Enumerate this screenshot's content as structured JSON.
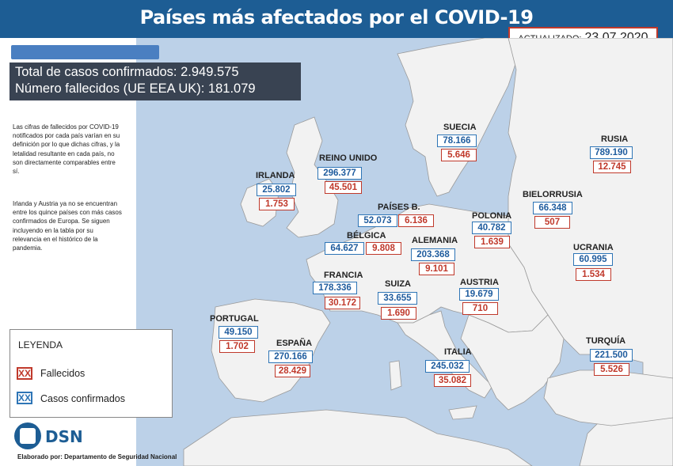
{
  "header": {
    "title": "Países más afectados por el COVID-19",
    "update_label": "ACTUALIZADO:",
    "update_date": "23.07.2020"
  },
  "summary": {
    "total_cases": "Total de casos confirmados: 2.949.575",
    "total_deaths": "Número fallecidos (UE EEA UK): 181.079"
  },
  "notes": {
    "note1": "Las cifras de fallecidos por COVID-19 notificados por cada país varían en su definición por lo que dichas cifras, y la letalidad resultante en cada país, no son directamente comparables entre sí.",
    "note2": "Irlanda y Austria ya no se encuentran entre los quince países con más casos confirmados de Europa. Se siguen incluyendo en la tabla por su relevancia en el histórico de la pandemia."
  },
  "legend": {
    "title": "LEYENDA",
    "deaths_chip": "XX",
    "deaths_label": "Fallecidos",
    "cases_chip": "XX",
    "cases_label": "Casos confirmados"
  },
  "colors": {
    "header": "#1d5d94",
    "cases": "#2e75b6",
    "deaths": "#c0392b",
    "sea": "#bcd1e8",
    "land": "#f2f2f2"
  },
  "footer": {
    "logo_text": "DSN",
    "credit": "Elaborado por: Departamento de Seguridad Nacional"
  },
  "countries": {
    "irlanda": {
      "name": "IRLANDA",
      "cases": "25.802",
      "deaths": "1.753"
    },
    "reino_unido": {
      "name": "REINO UNIDO",
      "cases": "296.377",
      "deaths": "45.501"
    },
    "suecia": {
      "name": "SUECIA",
      "cases": "78.166",
      "deaths": "5.646"
    },
    "rusia": {
      "name": "RUSIA",
      "cases": "789.190",
      "deaths": "12.745"
    },
    "paises_b": {
      "name": "PAÍSES B.",
      "cases": "52.073",
      "deaths": "6.136"
    },
    "bielorrusia": {
      "name": "BIELORRUSIA",
      "cases": "66.348",
      "deaths": "507"
    },
    "polonia": {
      "name": "POLONIA",
      "cases": "40.782",
      "deaths": "1.639"
    },
    "belgica": {
      "name": "BÉLGICA",
      "cases": "64.627",
      "deaths": "9.808"
    },
    "alemania": {
      "name": "ALEMANIA",
      "cases": "203.368",
      "deaths": "9.101"
    },
    "ucrania": {
      "name": "UCRANIA",
      "cases": "60.995",
      "deaths": "1.534"
    },
    "francia": {
      "name": "FRANCIA",
      "cases": "178.336",
      "deaths": "30.172"
    },
    "suiza": {
      "name": "SUIZA",
      "cases": "33.655",
      "deaths": "1.690"
    },
    "austria": {
      "name": "AUSTRIA",
      "cases": "19.679",
      "deaths": "710"
    },
    "portugal": {
      "name": "PORTUGAL",
      "cases": "49.150",
      "deaths": "1.702"
    },
    "espana": {
      "name": "ESPAÑA",
      "cases": "270.166",
      "deaths": "28.429"
    },
    "italia": {
      "name": "ITALIA",
      "cases": "245.032",
      "deaths": "35.082"
    },
    "turquia": {
      "name": "TURQUÍA",
      "cases": "221.500",
      "deaths": "5.526"
    }
  }
}
